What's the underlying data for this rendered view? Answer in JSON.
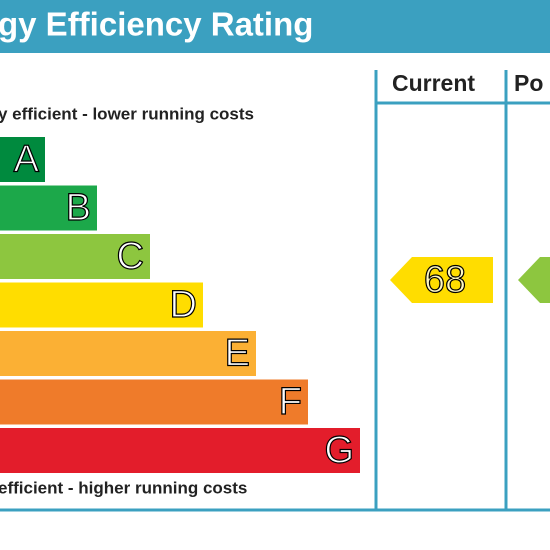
{
  "header": {
    "title": "gy Efficiency Rating"
  },
  "columns": [
    "Current",
    "Po"
  ],
  "top_note": "y efficient - lower running costs",
  "bottom_note": " efficient - higher running costs",
  "bands": [
    {
      "letter": "A",
      "color": "#008a3e"
    },
    {
      "letter": "B",
      "color": "#1ca84a"
    },
    {
      "letter": "C",
      "color": "#8dc63f"
    },
    {
      "letter": "D",
      "color": "#ffdd00"
    },
    {
      "letter": "E",
      "color": "#fbb034"
    },
    {
      "letter": "F",
      "color": "#ef7b2a"
    },
    {
      "letter": "G",
      "color": "#e31d2b"
    }
  ],
  "current": {
    "rating": 68,
    "color": "#ffdd00"
  },
  "potential": {
    "color": "#8dc63f"
  }
}
